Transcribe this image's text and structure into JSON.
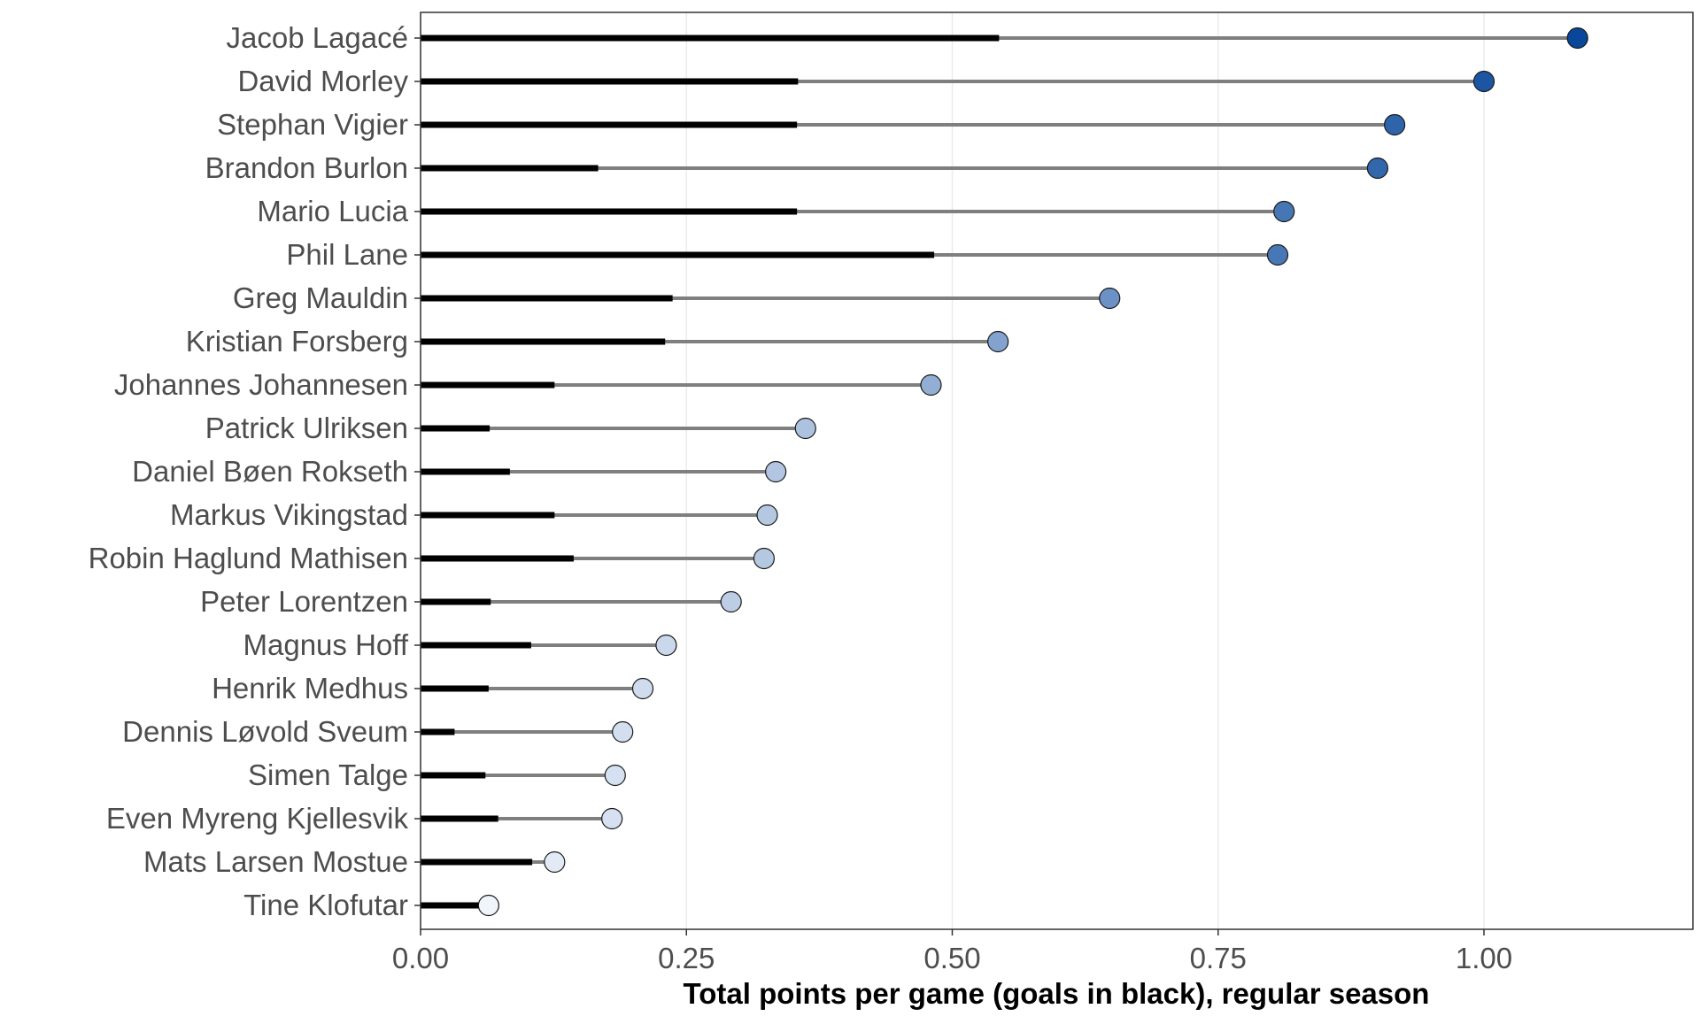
{
  "chart_data": {
    "type": "lollipop",
    "xlabel": "Total points per game (goals in black), regular season",
    "ylabel": "",
    "xlim": [
      0,
      1.2
    ],
    "x_ticks": [
      0.0,
      0.25,
      0.5,
      0.75,
      1.0
    ],
    "x_tick_labels": [
      "0.00",
      "0.25",
      "0.50",
      "0.75",
      "1.00"
    ],
    "grid": "vertical",
    "series": [
      {
        "name": "Total points per game",
        "values": [
          1.088,
          1.0,
          0.916,
          0.9,
          0.812,
          0.806,
          0.648,
          0.543,
          0.48,
          0.362,
          0.334,
          0.326,
          0.323,
          0.292,
          0.231,
          0.209,
          0.19,
          0.183,
          0.18,
          0.126,
          0.064
        ]
      },
      {
        "name": "Goals per game",
        "values": [
          0.544,
          0.355,
          0.354,
          0.167,
          0.354,
          0.483,
          0.237,
          0.23,
          0.126,
          0.065,
          0.084,
          0.126,
          0.144,
          0.066,
          0.104,
          0.064,
          0.032,
          0.061,
          0.073,
          0.105,
          0.055
        ]
      }
    ],
    "categories": [
      "Jacob Lagacé",
      "David Morley",
      "Stephan Vigier",
      "Brandon Burlon",
      "Mario Lucia",
      "Phil Lane",
      "Greg Mauldin",
      "Kristian Forsberg",
      "Johannes Johannesen",
      "Patrick Ulriksen",
      "Daniel Bøen Rokseth",
      "Markus Vikingstad",
      "Robin Haglund Mathisen",
      "Peter Lorentzen",
      "Magnus Hoff",
      "Henrik Medhus",
      "Dennis Løvold Sveum",
      "Simen Talge",
      "Even Myreng Kjellesvik",
      "Mats Larsen Mostue",
      "Tine Klofutar"
    ],
    "colors": {
      "goals_bar": "#000000",
      "points_line": "#7f7f7f",
      "point_scale_low": "#f0f4fb",
      "point_scale_high": "#08479a",
      "grid": "#ebebeb",
      "panel_border": "#333333"
    }
  }
}
